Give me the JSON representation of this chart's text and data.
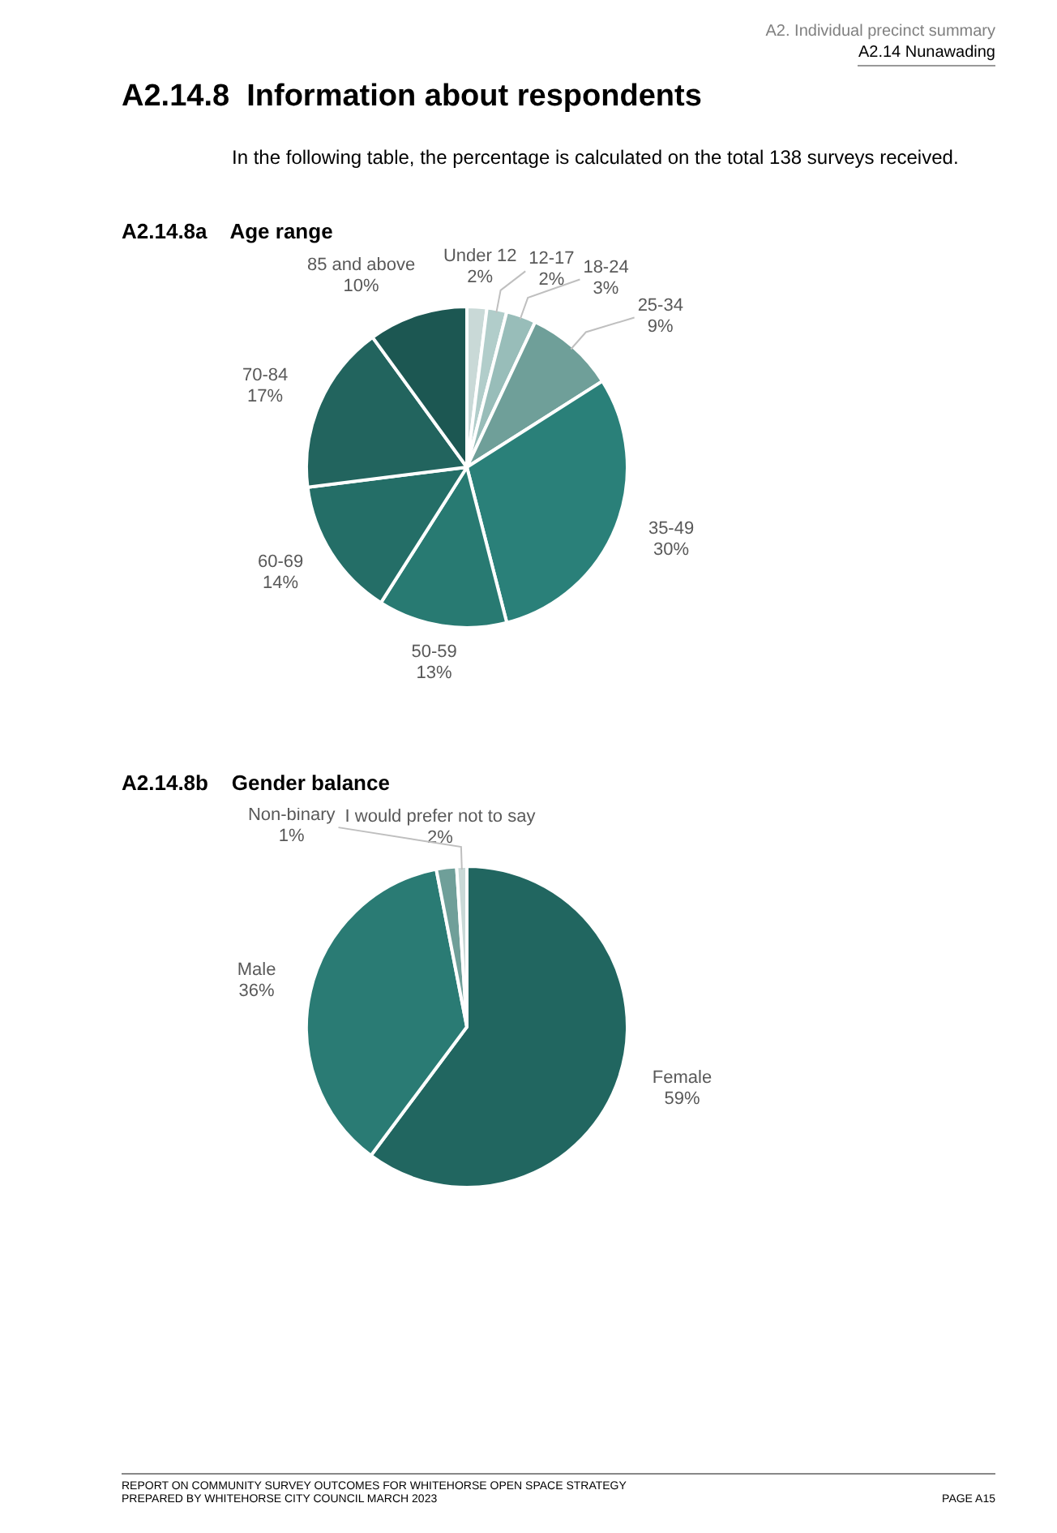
{
  "chart_data": [
    {
      "type": "pie",
      "title": "A2.14.8a    Age range",
      "annotations": [
        "A2. Individual precinct summary",
        "A2.14 Nunawading",
        "A2.14.8  Information about respondents",
        "In the following table, the percentage is calculated on the total 138 surveys received."
      ],
      "categories": [
        "Under 12",
        "12-17",
        "18-24",
        "25-34",
        "35-49",
        "50-59",
        "60-69",
        "70-84",
        "85 and above"
      ],
      "values": [
        2,
        2,
        3,
        9,
        30,
        13,
        14,
        17,
        10
      ],
      "value_labels": [
        "2%",
        "2%",
        "3%",
        "9%",
        "30%",
        "13%",
        "14%",
        "17%",
        "10%"
      ],
      "colors": [
        "#c9d9d7",
        "#b1cdca",
        "#98bdb9",
        "#6f9f99",
        "#2a8079",
        "#287a72",
        "#246e67",
        "#22645e",
        "#1c5752"
      ]
    },
    {
      "type": "pie",
      "title": "A2.14.8b    Gender balance",
      "annotations": [
        "REPORT ON COMMUNITY SURVEY OUTCOMES FOR WHITEHORSE OPEN SPACE STRATEGY",
        "PREPARED BY WHITEHORSE CITY COUNCIL MARCH 2023",
        "PAGE A15"
      ],
      "categories": [
        "Female",
        "Male",
        "I would prefer not to say",
        "Non-binary"
      ],
      "values": [
        59,
        36,
        2,
        1
      ],
      "value_labels": [
        "59%",
        "36%",
        "2%",
        "1%"
      ],
      "colors": [
        "#216660",
        "#2a7b74",
        "#6f9f99",
        "#c9d9d7"
      ]
    }
  ]
}
